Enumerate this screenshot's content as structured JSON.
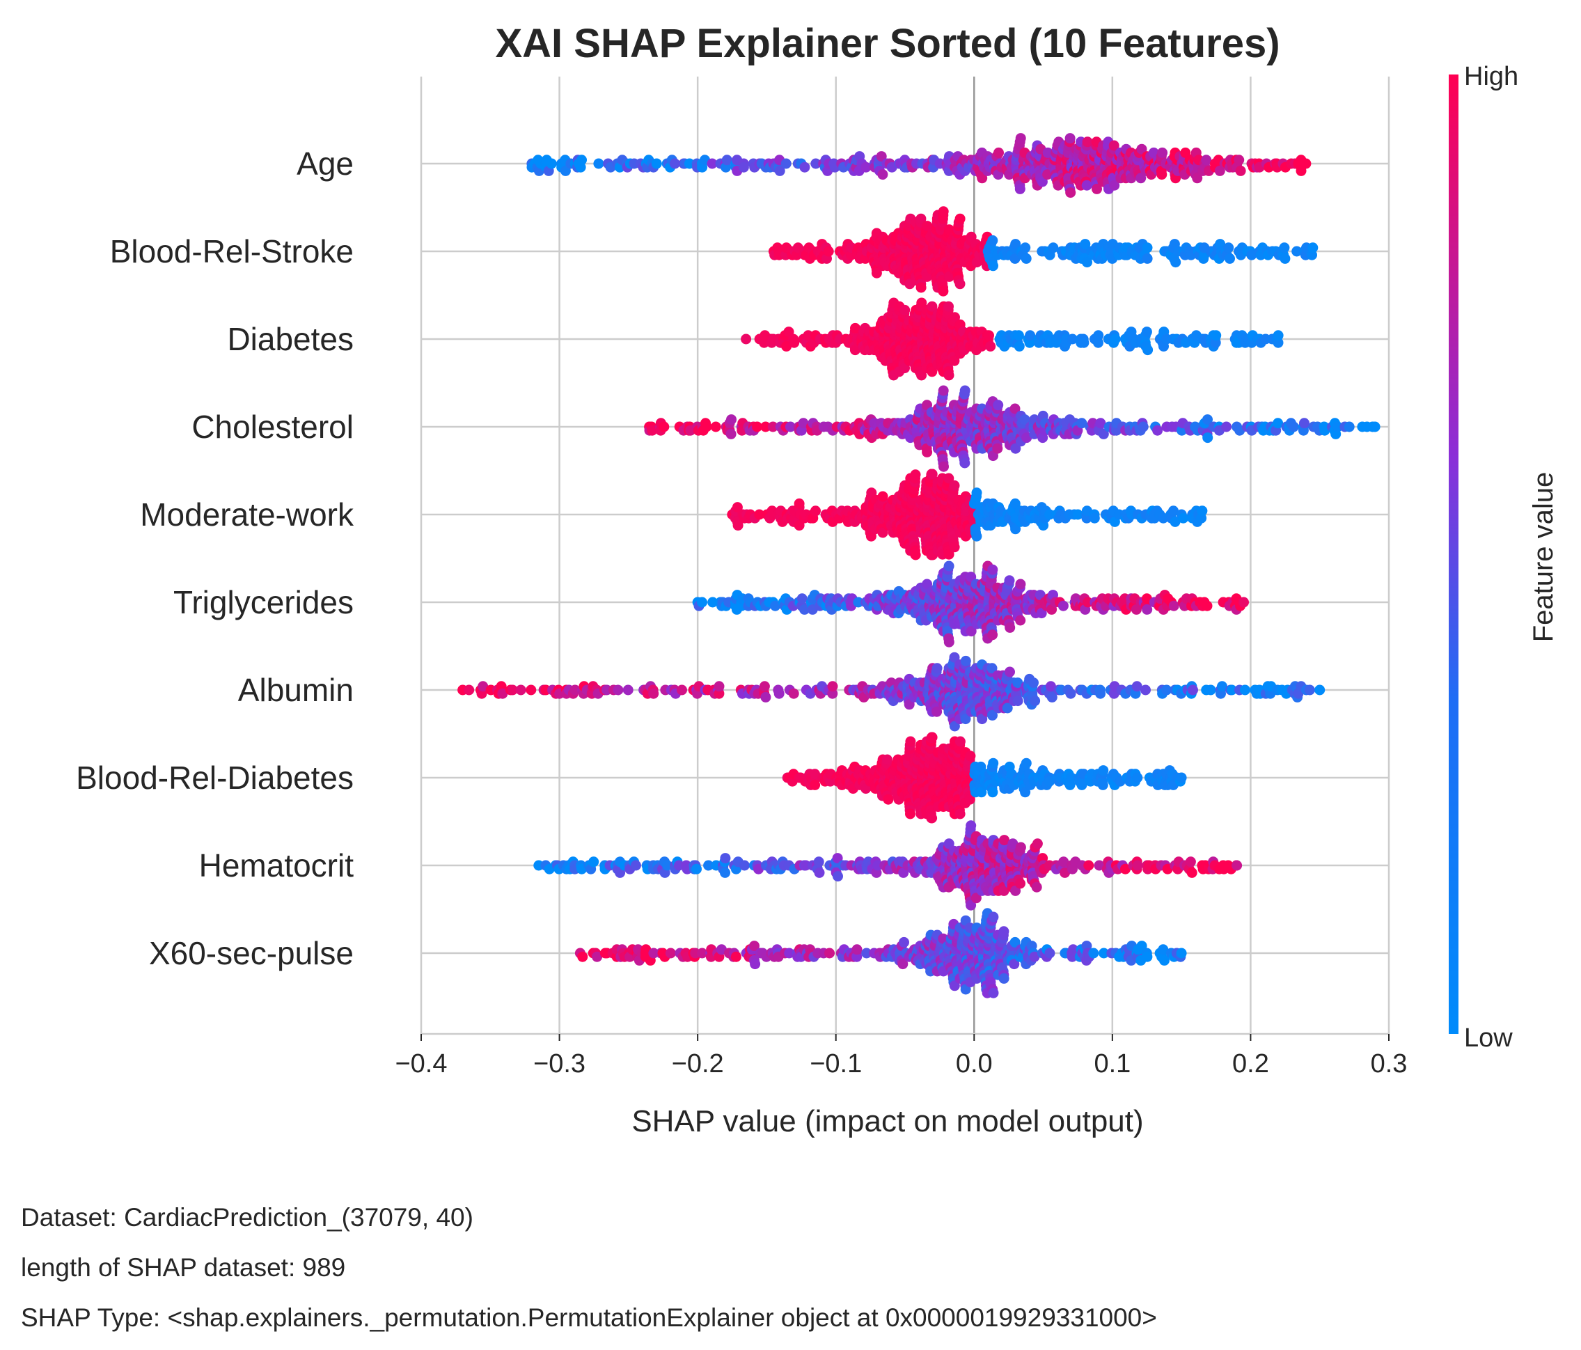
{
  "chart_data": {
    "type": "scatter",
    "subtype": "shap-beeswarm",
    "title": "XAI SHAP Explainer Sorted  (10 Features)",
    "xlabel": "SHAP value (impact on model output)",
    "xlim": [
      -0.4,
      0.3
    ],
    "xticks": [
      -0.4,
      -0.3,
      -0.2,
      -0.1,
      0.0,
      0.1,
      0.2,
      0.3
    ],
    "xtick_labels": [
      "−0.4",
      "−0.3",
      "−0.2",
      "−0.1",
      "0.0",
      "0.1",
      "0.2",
      "0.3"
    ],
    "grid": true,
    "legend": "colorbar-right",
    "colorbar": {
      "label": "Feature value",
      "high_label": "High",
      "low_label": "Low",
      "high_color": "#ff0052",
      "mid_color": "#8a2fd8",
      "low_color": "#008bfb"
    },
    "features": [
      {
        "name": "Age",
        "min": -0.32,
        "max": 0.24,
        "center": 0.08,
        "peak_width": 0.12,
        "density": 1.0,
        "neg_color": "low",
        "pos_color": "high"
      },
      {
        "name": "Blood-Rel-Stroke",
        "min": -0.145,
        "max": 0.245,
        "center": -0.035,
        "peak_width": 0.05,
        "density": 0.9,
        "neg_color": "high",
        "pos_color": "low",
        "split": 0.01
      },
      {
        "name": "Diabetes",
        "min": -0.165,
        "max": 0.22,
        "center": -0.04,
        "peak_width": 0.05,
        "density": 0.85,
        "neg_color": "high",
        "pos_color": "low",
        "split": 0.015
      },
      {
        "name": "Cholesterol",
        "min": -0.235,
        "max": 0.29,
        "center": -0.01,
        "peak_width": 0.07,
        "density": 0.9,
        "neg_color": "high",
        "pos_color": "low"
      },
      {
        "name": "Moderate-work",
        "min": -0.175,
        "max": 0.165,
        "center": -0.035,
        "peak_width": 0.05,
        "density": 0.95,
        "neg_color": "high",
        "pos_color": "low",
        "split": 0.0
      },
      {
        "name": "Triglycerides",
        "min": -0.2,
        "max": 0.195,
        "center": -0.005,
        "peak_width": 0.07,
        "density": 0.9,
        "neg_color": "low",
        "pos_color": "high"
      },
      {
        "name": "Albumin",
        "min": -0.37,
        "max": 0.25,
        "center": -0.005,
        "peak_width": 0.06,
        "density": 0.85,
        "neg_color": "high",
        "pos_color": "low"
      },
      {
        "name": "Blood-Rel-Diabetes",
        "min": -0.135,
        "max": 0.15,
        "center": -0.03,
        "peak_width": 0.045,
        "density": 0.9,
        "neg_color": "high",
        "pos_color": "low",
        "split": 0.0
      },
      {
        "name": "Hematocrit",
        "min": -0.315,
        "max": 0.19,
        "center": 0.005,
        "peak_width": 0.06,
        "density": 0.85,
        "neg_color": "low",
        "pos_color": "high"
      },
      {
        "name": "X60-sec-pulse",
        "min": -0.285,
        "max": 0.15,
        "center": -0.005,
        "peak_width": 0.05,
        "density": 0.8,
        "neg_color": "high",
        "pos_color": "low"
      }
    ]
  },
  "footer": {
    "line1": "Dataset:  CardiacPrediction_(37079, 40)",
    "line2": "length of SHAP dataset: 989",
    "line3": "SHAP Type: <shap.explainers._permutation.PermutationExplainer object at 0x0000019929331000>"
  }
}
